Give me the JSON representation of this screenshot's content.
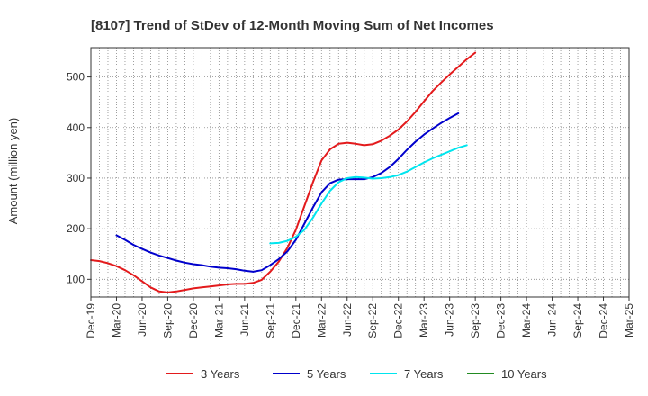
{
  "chart_data": {
    "type": "line",
    "title": "[8107]  Trend of StDev of 12-Month Moving Sum of Net Incomes",
    "ylabel": "Amount (million yen)",
    "xlabel": "",
    "ylim": [
      65,
      558
    ],
    "yticks": [
      100,
      200,
      300,
      400,
      500
    ],
    "xticks": [
      "Dec-19",
      "Mar-20",
      "Jun-20",
      "Sep-20",
      "Dec-20",
      "Mar-21",
      "Jun-21",
      "Sep-21",
      "Dec-21",
      "Mar-22",
      "Jun-22",
      "Sep-22",
      "Dec-22",
      "Mar-23",
      "Jun-23",
      "Sep-23",
      "Dec-23",
      "Mar-24",
      "Jun-24",
      "Sep-24",
      "Dec-24",
      "Mar-25"
    ],
    "grid": true,
    "legend_position": "bottom",
    "series": [
      {
        "name": "3 Years",
        "color": "#e31a1c",
        "start_index": 0,
        "values": [
          138,
          136,
          132,
          126,
          118,
          108,
          96,
          84,
          76,
          74,
          76,
          79,
          82,
          84,
          86,
          88,
          90,
          91,
          91,
          93,
          99,
          115,
          135,
          162,
          198,
          245,
          292,
          335,
          357,
          368,
          370,
          368,
          365,
          367,
          374,
          384,
          396,
          412,
          431,
          452,
          472,
          489,
          505,
          520,
          535,
          548
        ]
      },
      {
        "name": "5 Years",
        "color": "#0000cc",
        "start_index": 3,
        "values": [
          187,
          178,
          168,
          160,
          153,
          147,
          142,
          137,
          133,
          130,
          128,
          125,
          123,
          122,
          120,
          117,
          115,
          118,
          128,
          140,
          155,
          178,
          210,
          242,
          272,
          290,
          297,
          298,
          298,
          298,
          302,
          310,
          322,
          338,
          356,
          372,
          386,
          398,
          409,
          419,
          428
        ]
      },
      {
        "name": "7 Years",
        "color": "#00e5ee",
        "start_index": 21,
        "values": [
          171,
          172,
          176,
          184,
          198,
          222,
          250,
          275,
          292,
          300,
          302,
          301,
          299,
          300,
          302,
          306,
          313,
          322,
          331,
          339,
          346,
          353,
          360,
          365
        ]
      },
      {
        "name": "10 Years",
        "color": "#228b22",
        "start_index": 0,
        "values": []
      }
    ]
  }
}
